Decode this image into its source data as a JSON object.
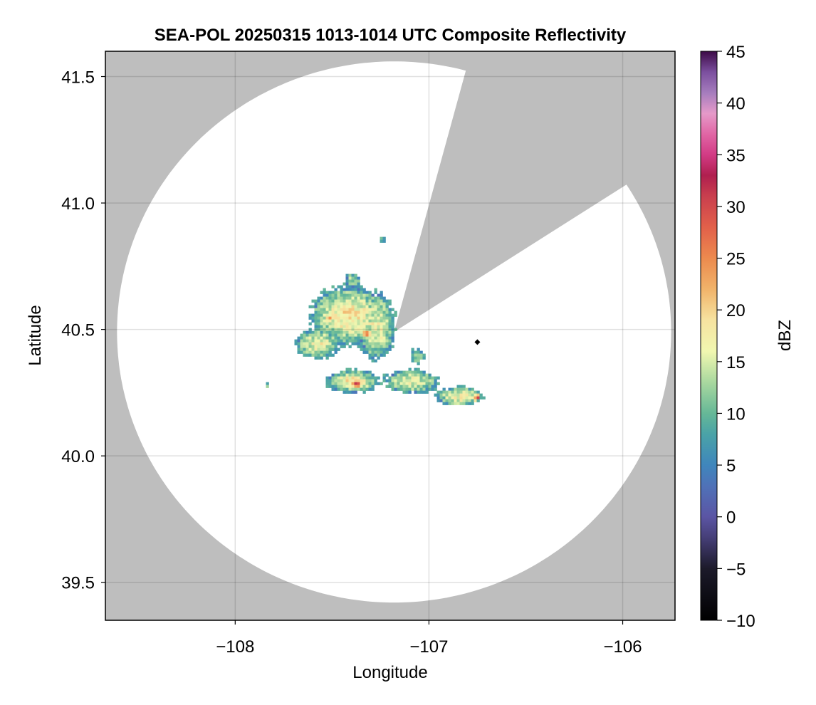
{
  "chart_data": {
    "type": "heatmap",
    "title": "SEA-POL 20250315 1013-1014 UTC Composite Reflectivity",
    "xlabel": "Longitude",
    "ylabel": "Latitude",
    "xlim": [
      -108.67,
      -105.73
    ],
    "ylim": [
      39.35,
      41.6
    ],
    "xticks": [
      {
        "value": -108,
        "label": "−108"
      },
      {
        "value": -107,
        "label": "−107"
      },
      {
        "value": -106,
        "label": "−106"
      }
    ],
    "yticks": [
      {
        "value": 39.5,
        "label": "39.5"
      },
      {
        "value": 40.0,
        "label": "40.0"
      },
      {
        "value": 40.5,
        "label": "40.5"
      },
      {
        "value": 41.0,
        "label": "41.0"
      },
      {
        "value": 41.5,
        "label": "41.5"
      }
    ],
    "grid": true,
    "colorbar": {
      "label": "dBZ",
      "range": [
        -10,
        45
      ],
      "ticks": [
        {
          "value": -10,
          "label": "−10"
        },
        {
          "value": -5,
          "label": "−5"
        },
        {
          "value": 0,
          "label": "0"
        },
        {
          "value": 5,
          "label": "5"
        },
        {
          "value": 10,
          "label": "10"
        },
        {
          "value": 15,
          "label": "15"
        },
        {
          "value": 20,
          "label": "20"
        },
        {
          "value": 25,
          "label": "25"
        },
        {
          "value": 30,
          "label": "30"
        },
        {
          "value": 35,
          "label": "35"
        },
        {
          "value": 40,
          "label": "40"
        },
        {
          "value": 45,
          "label": "45"
        }
      ],
      "stops": [
        {
          "value": -10,
          "color": "#000000"
        },
        {
          "value": -5,
          "color": "#1c1a2a"
        },
        {
          "value": -2,
          "color": "#463f78"
        },
        {
          "value": 0,
          "color": "#5b55a4"
        },
        {
          "value": 3,
          "color": "#4f72b8"
        },
        {
          "value": 5,
          "color": "#3f86bc"
        },
        {
          "value": 8,
          "color": "#4aa3a7"
        },
        {
          "value": 10,
          "color": "#66b897"
        },
        {
          "value": 13,
          "color": "#a9d89f"
        },
        {
          "value": 16,
          "color": "#f1f7b0"
        },
        {
          "value": 19,
          "color": "#f6e3a0"
        },
        {
          "value": 22,
          "color": "#f1b36a"
        },
        {
          "value": 25,
          "color": "#ec8a4e"
        },
        {
          "value": 28,
          "color": "#e2604a"
        },
        {
          "value": 31,
          "color": "#c93f4e"
        },
        {
          "value": 33,
          "color": "#b01f4f"
        },
        {
          "value": 35,
          "color": "#d23b85"
        },
        {
          "value": 37,
          "color": "#e066a5"
        },
        {
          "value": 39,
          "color": "#e59ac9"
        },
        {
          "value": 41,
          "color": "#a57cbd"
        },
        {
          "value": 43,
          "color": "#7b4f9e"
        },
        {
          "value": 45,
          "color": "#3d0a47"
        }
      ]
    },
    "radar": {
      "center": {
        "lon": -107.18,
        "lat": 40.49
      },
      "range_lat": 1.07,
      "range_lon": 1.43,
      "blocked_sectors_deg_from_north": [
        [
          15,
          57
        ]
      ]
    },
    "no_data_color": "#bebebe",
    "station_marker": {
      "lon": -106.75,
      "lat": 40.45
    },
    "echo_region": {
      "lon_range": [
        -107.9,
        -106.7
      ],
      "lat_range": [
        40.2,
        40.9
      ],
      "peak_dbz": 31
    }
  }
}
